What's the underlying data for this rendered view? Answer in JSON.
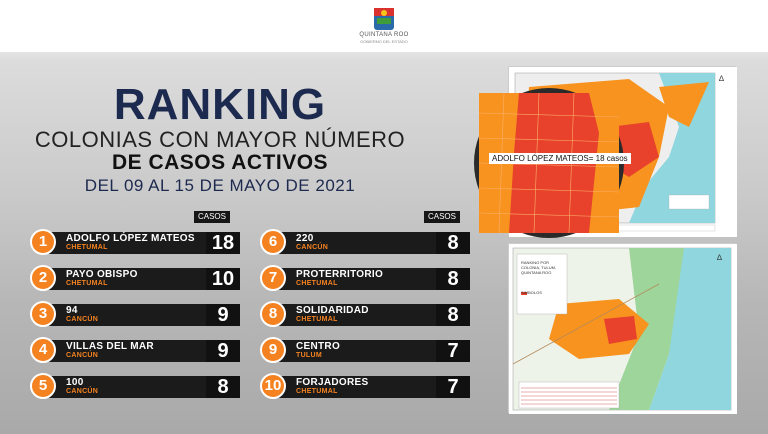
{
  "header": {
    "logo_text": "QUINTANA ROO",
    "logo_subtext": "GOBIERNO DEL ESTADO"
  },
  "title": {
    "line1": "RANKING",
    "line2": "COLONIAS CON MAYOR NÚMERO",
    "line3": "DE CASOS ACTIVOS",
    "line4": "DEL 09 AL 15 DE MAYO DE 2021"
  },
  "casos_label": "CASOS",
  "ranking": [
    {
      "rank": "1",
      "colonia": "ADOLFO LÓPEZ MATEOS",
      "city": "CHETUMAL",
      "cases": "18"
    },
    {
      "rank": "2",
      "colonia": "PAYO OBISPO",
      "city": "CHETUMAL",
      "cases": "10"
    },
    {
      "rank": "3",
      "colonia": "94",
      "city": "CANCÚN",
      "cases": "9"
    },
    {
      "rank": "4",
      "colonia": "VILLAS DEL MAR",
      "city": "CANCÚN",
      "cases": "9"
    },
    {
      "rank": "5",
      "colonia": "100",
      "city": "CANCÚN",
      "cases": "8"
    },
    {
      "rank": "6",
      "colonia": "220",
      "city": "CANCÚN",
      "cases": "8"
    },
    {
      "rank": "7",
      "colonia": "PROTERRITORIO",
      "city": "CHETUMAL",
      "cases": "8"
    },
    {
      "rank": "8",
      "colonia": "SOLIDARIDAD",
      "city": "CHETUMAL",
      "cases": "8"
    },
    {
      "rank": "9",
      "colonia": "CENTRO",
      "city": "TULUM",
      "cases": "7"
    },
    {
      "rank": "10",
      "colonia": "FORJADORES",
      "city": "CHETUMAL",
      "cases": "7"
    }
  ],
  "map1": {
    "callout": "ADOLFO LÓPEZ MATEOS= 18 casos"
  },
  "map2": {
    "title": "RANKING POR COLONIA, TULUM, QUINTANA ROO",
    "legend_title": "SIMBOLOS"
  },
  "colors": {
    "accent": "#f58220",
    "dark_bar": "#1b1b1b",
    "title_navy": "#1d2a4f",
    "hotspot": "#e8412c"
  }
}
